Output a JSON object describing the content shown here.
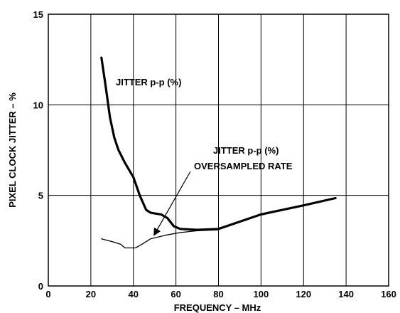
{
  "chart_data": {
    "type": "line",
    "xlabel": "FREQUENCY – MHz",
    "ylabel": "PIXEL CLOCK JITTER – %",
    "xlim": [
      0,
      160
    ],
    "ylim": [
      0,
      15
    ],
    "x_ticks": [
      0,
      20,
      40,
      60,
      80,
      100,
      120,
      140,
      160
    ],
    "y_ticks": [
      0,
      5,
      10,
      15
    ],
    "grid": true,
    "legend": "none",
    "series": [
      {
        "name": "JITTER p-p (%)",
        "x": [
          25,
          27,
          29,
          31,
          33,
          36,
          40,
          43,
          46,
          48,
          50,
          53,
          56,
          59,
          62,
          70,
          80,
          90,
          100,
          120,
          135
        ],
        "y": [
          12.6,
          11.0,
          9.3,
          8.2,
          7.5,
          6.8,
          6.0,
          5.0,
          4.2,
          4.05,
          4.0,
          3.95,
          3.75,
          3.3,
          3.15,
          3.1,
          3.15,
          3.55,
          3.95,
          4.45,
          4.85
        ],
        "color": "#000000",
        "line_weight": "heavy"
      },
      {
        "name": "JITTER p-p (%) OVERSAMPLED RATE",
        "x": [
          25,
          30,
          34,
          36,
          38,
          41,
          44,
          48,
          55,
          62,
          70,
          80
        ],
        "y": [
          2.6,
          2.45,
          2.3,
          2.1,
          2.1,
          2.1,
          2.3,
          2.6,
          2.8,
          2.95,
          3.05,
          3.1
        ],
        "color": "#000000",
        "line_weight": "thin"
      }
    ],
    "annotations": [
      {
        "id": "jitter",
        "lines": [
          "JITTER p-p (%)"
        ]
      },
      {
        "id": "oversampled",
        "lines": [
          "JITTER p-p (%)",
          "OVERSAMPLED RATE"
        ],
        "arrow_to": [
          48,
          2.6
        ]
      }
    ]
  }
}
